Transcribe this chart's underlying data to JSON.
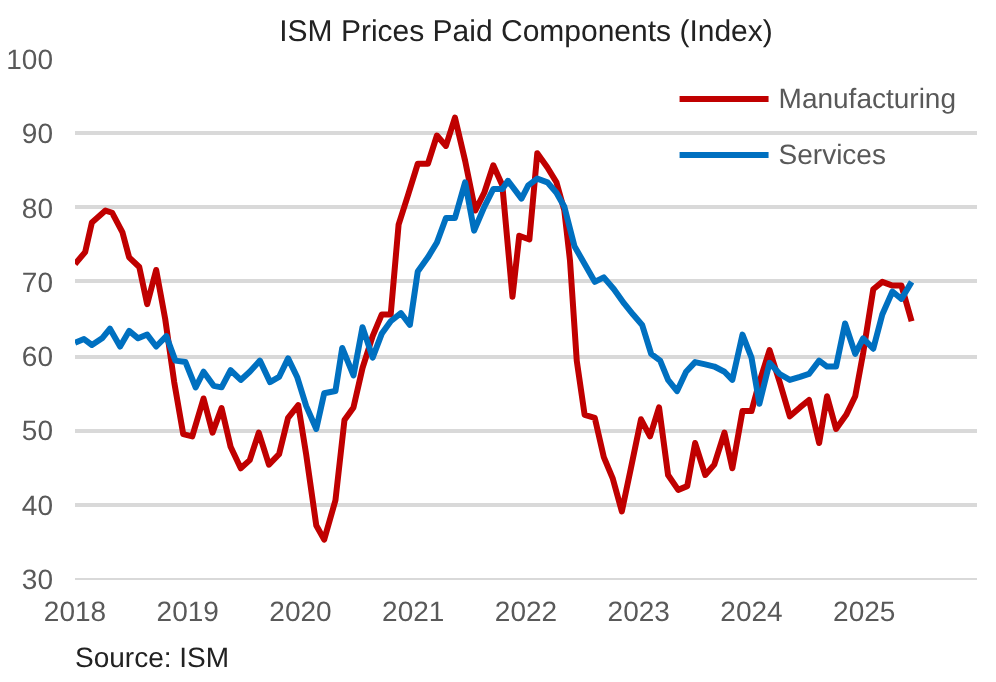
{
  "chart_data": {
    "type": "line",
    "title": "ISM Prices Paid Components (Index)",
    "xlim": [
      2018,
      2026
    ],
    "xticks": [
      2018,
      2019,
      2020,
      2021,
      2022,
      2023,
      2024,
      2025
    ],
    "ylim": [
      30,
      100
    ],
    "yticks": [
      30,
      40,
      50,
      60,
      70,
      80,
      90,
      100
    ],
    "grid": "y",
    "legend": "top right",
    "line_style": "solid",
    "marker": "none",
    "annotations": [
      "Source: ISM"
    ],
    "series": [
      {
        "name": "Manufacturing",
        "color": "#c00000",
        "x": [
          2018.0,
          2018.09,
          2018.15,
          2018.27,
          2018.33,
          2018.42,
          2018.48,
          2018.57,
          2018.64,
          2018.72,
          2018.8,
          2018.88,
          2018.96,
          2019.04,
          2019.14,
          2019.22,
          2019.3,
          2019.38,
          2019.47,
          2019.55,
          2019.63,
          2019.72,
          2019.81,
          2019.89,
          2019.98,
          2020.05,
          2020.14,
          2020.21,
          2020.31,
          2020.39,
          2020.47,
          2020.55,
          2020.64,
          2020.72,
          2020.8,
          2020.87,
          2020.95,
          2021.04,
          2021.13,
          2021.21,
          2021.29,
          2021.37,
          2021.46,
          2021.55,
          2021.63,
          2021.71,
          2021.79,
          2021.88,
          2021.94,
          2022.03,
          2022.1,
          2022.19,
          2022.27,
          2022.34,
          2022.39,
          2022.45,
          2022.52,
          2022.61,
          2022.69,
          2022.77,
          2022.85,
          2022.93,
          2023.02,
          2023.1,
          2023.18,
          2023.26,
          2023.35,
          2023.43,
          2023.5,
          2023.59,
          2023.67,
          2023.76,
          2023.83,
          2023.92,
          2024.0,
          2024.07,
          2024.16,
          2024.25,
          2024.34,
          2024.43,
          2024.51,
          2024.6,
          2024.67,
          2024.75,
          2024.84,
          2024.92,
          2024.99,
          2025.08,
          2025.16,
          2025.25,
          2025.33,
          2025.42
        ],
        "values": [
          72.4,
          74,
          78,
          79.6,
          79.3,
          76.7,
          73.3,
          72,
          67,
          71.6,
          65,
          56.5,
          49.5,
          49.2,
          54.3,
          49.7,
          53,
          47.8,
          44.9,
          46,
          49.7,
          45.4,
          46.8,
          51.7,
          53.4,
          46.8,
          37.2,
          35.3,
          40.6,
          51.4,
          53.1,
          58.4,
          62.7,
          65.6,
          65.6,
          77.7,
          81.5,
          85.9,
          85.9,
          89.7,
          88.3,
          92.1,
          86.3,
          79.6,
          82,
          85.7,
          83,
          68,
          76.2,
          75.7,
          87.3,
          85.4,
          83.4,
          79.6,
          72.9,
          59.4,
          52.1,
          51.7,
          46.4,
          43.5,
          39.1,
          44.9,
          51.5,
          49.2,
          53.1,
          44,
          42,
          42.5,
          48.3,
          44,
          45.4,
          49.7,
          44.9,
          52.6,
          52.6,
          56.5,
          60.8,
          56.5,
          51.9,
          53.1,
          54.1,
          48.3,
          54.6,
          50.2,
          52.1,
          54.6,
          60.4,
          69,
          70,
          69.5,
          69.5,
          64.7
        ]
      },
      {
        "name": "Services",
        "color": "#0070c0",
        "x": [
          2018.0,
          2018.08,
          2018.15,
          2018.24,
          2018.31,
          2018.4,
          2018.48,
          2018.56,
          2018.64,
          2018.72,
          2018.81,
          2018.89,
          2018.98,
          2019.07,
          2019.14,
          2019.23,
          2019.3,
          2019.38,
          2019.47,
          2019.55,
          2019.64,
          2019.73,
          2019.81,
          2019.89,
          2019.97,
          2020.05,
          2020.14,
          2020.21,
          2020.31,
          2020.37,
          2020.47,
          2020.55,
          2020.64,
          2020.72,
          2020.8,
          2020.89,
          2020.97,
          2021.04,
          2021.13,
          2021.21,
          2021.29,
          2021.37,
          2021.46,
          2021.54,
          2021.63,
          2021.71,
          2021.79,
          2021.84,
          2021.96,
          2022.02,
          2022.1,
          2022.19,
          2022.27,
          2022.34,
          2022.43,
          2022.52,
          2022.61,
          2022.69,
          2022.78,
          2022.87,
          2022.95,
          2023.03,
          2023.11,
          2023.19,
          2023.26,
          2023.34,
          2023.42,
          2023.5,
          2023.59,
          2023.67,
          2023.76,
          2023.83,
          2023.92,
          2024.0,
          2024.07,
          2024.16,
          2024.25,
          2024.34,
          2024.43,
          2024.51,
          2024.6,
          2024.67,
          2024.75,
          2024.83,
          2024.92,
          2024.99,
          2025.08,
          2025.16,
          2025.25,
          2025.33,
          2025.42
        ],
        "values": [
          61.8,
          62.3,
          61.5,
          62.4,
          63.7,
          61.3,
          63.4,
          62.4,
          62.9,
          61.3,
          62.7,
          59.4,
          59.2,
          55.8,
          57.9,
          56,
          55.8,
          58.1,
          56.8,
          57.9,
          59.4,
          56.5,
          57.2,
          59.7,
          57.2,
          53.3,
          50.2,
          55,
          55.3,
          61.1,
          57.4,
          63.9,
          59.8,
          63,
          64.7,
          65.8,
          64.2,
          71.4,
          73.3,
          75.3,
          78.6,
          78.6,
          83.4,
          76.9,
          80.1,
          82.5,
          82.5,
          83.6,
          81.2,
          83,
          83.9,
          83.4,
          82,
          80.1,
          74.8,
          72.4,
          70,
          70.6,
          69,
          67.1,
          65.6,
          64.2,
          60.3,
          59.4,
          56.8,
          55.3,
          57.9,
          59.2,
          58.9,
          58.6,
          57.9,
          56.8,
          62.9,
          59.8,
          53.6,
          59.1,
          57.6,
          56.8,
          57.2,
          57.6,
          59.4,
          58.6,
          58.6,
          64.4,
          60.3,
          62.4,
          61,
          65.6,
          68.7,
          67.7,
          70
        ]
      }
    ]
  }
}
